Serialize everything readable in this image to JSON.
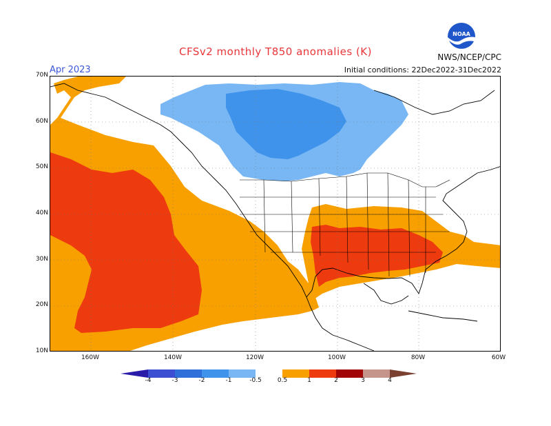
{
  "header": {
    "title": "CFSv2 monthly T850 anomalies (K)",
    "month": "Apr 2023",
    "initial_conditions": "Initial conditions: 22Dec2022-31Dec2022",
    "agency": "NWS/NCEP/CPC",
    "logo_text": "NOAA"
  },
  "axes": {
    "lat_labels": [
      "70N",
      "60N",
      "50N",
      "40N",
      "30N",
      "20N",
      "10N"
    ],
    "lon_labels": [
      "160W",
      "140W",
      "120W",
      "100W",
      "80W",
      "60W"
    ]
  },
  "colorbar": {
    "labels": [
      "-4",
      "-3",
      "-2",
      "-1",
      "-0.5",
      "0.5",
      "1",
      "2",
      "3",
      "4"
    ],
    "colors": [
      "#2a1ca8",
      "#3c4fd2",
      "#2f6fd9",
      "#3f93ea",
      "#78b7f3",
      "#ffffff",
      "#f7a000",
      "#ee3a0f",
      "#a10505",
      "#c5958c",
      "#7a4030"
    ]
  },
  "legend_colors": {
    "cool_light": "#78b7f3",
    "cool_mid": "#3f93ea",
    "warm_light": "#f7a000",
    "warm_mid": "#ee3a0f"
  }
}
